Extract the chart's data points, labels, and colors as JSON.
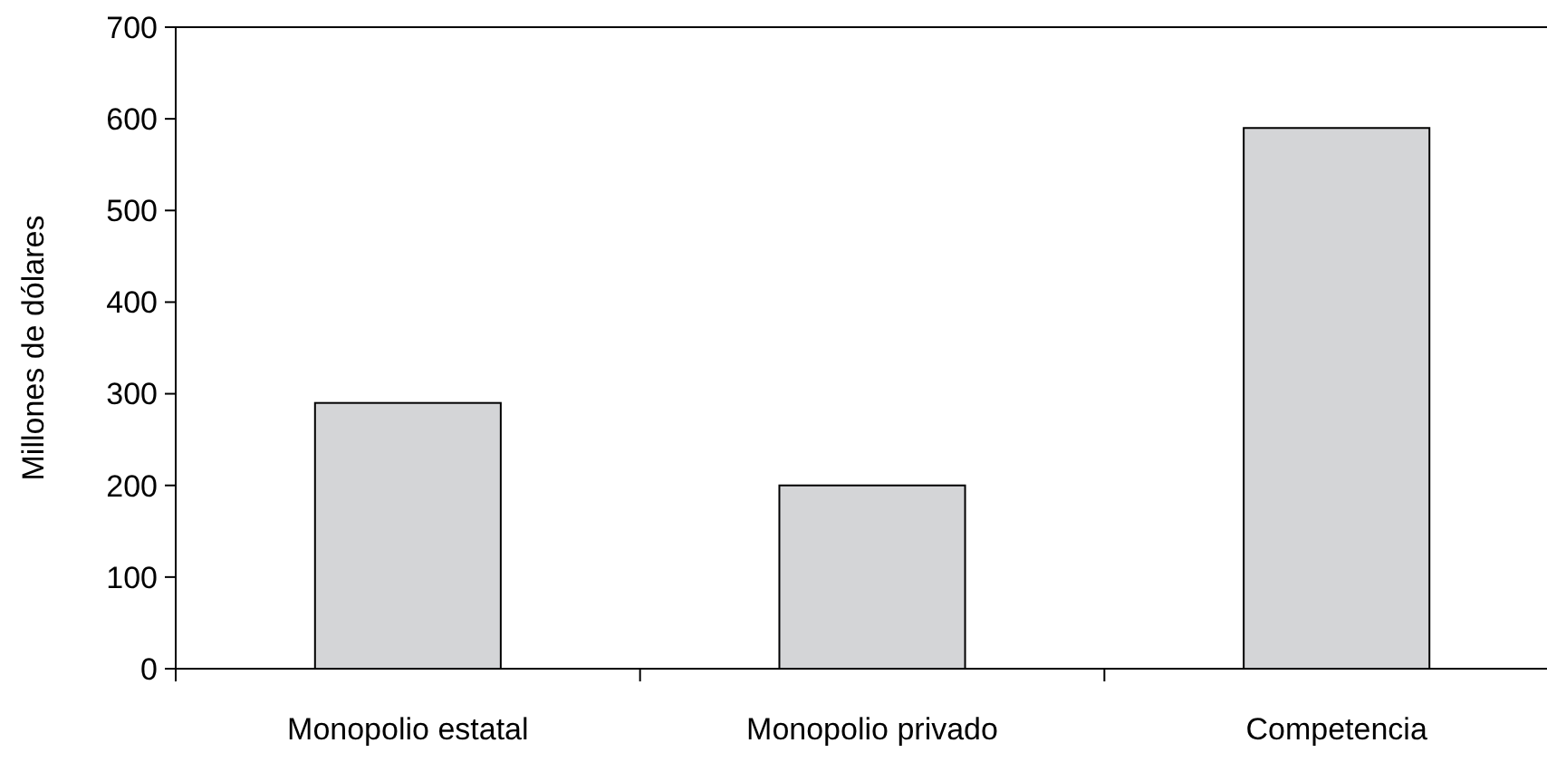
{
  "chart_data": {
    "type": "bar",
    "ylabel": "Millones de dólares",
    "categories": [
      "Monopolio estatal",
      "Monopolio privado",
      "Competencia"
    ],
    "values": [
      290,
      200,
      590
    ],
    "color": "#d4d5d7",
    "ylim": [
      0,
      700
    ],
    "yticks": [
      0,
      100,
      200,
      300,
      400,
      500,
      600,
      700
    ]
  }
}
